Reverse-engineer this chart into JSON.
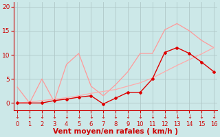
{
  "bg_color": "#cce8e8",
  "grid_color": "#b0c8c8",
  "xlabel": "Vent moyen/en rafales ( km/h )",
  "ylabel_ticks": [
    0,
    5,
    10,
    15,
    20
  ],
  "xlim": [
    -0.3,
    16.3
  ],
  "ylim": [
    -1.5,
    21
  ],
  "xticks": [
    0,
    1,
    2,
    3,
    4,
    5,
    6,
    7,
    8,
    9,
    10,
    11,
    12,
    13,
    14,
    15,
    16
  ],
  "series": [
    {
      "label": "s1_lightpink_spiky",
      "x": [
        0,
        1,
        2,
        3,
        4,
        5,
        6,
        7,
        8,
        9,
        10,
        11,
        12,
        13,
        14,
        15,
        16
      ],
      "y": [
        3.3,
        0.0,
        5.0,
        0.3,
        8.0,
        10.3,
        3.5,
        1.5,
        3.8,
        6.5,
        10.3,
        10.3,
        15.2,
        16.5,
        15.0,
        13.0,
        11.5
      ],
      "color": "#ff9999",
      "linewidth": 0.9,
      "marker": null,
      "zorder": 2
    },
    {
      "label": "s2_linear",
      "x": [
        0,
        1,
        2,
        3,
        4,
        5,
        6,
        7,
        8,
        9,
        10,
        11,
        12,
        13,
        14,
        15,
        16
      ],
      "y": [
        0.0,
        0.2,
        0.5,
        0.8,
        1.1,
        1.5,
        2.0,
        2.4,
        2.8,
        3.5,
        4.2,
        5.2,
        6.5,
        7.8,
        9.0,
        10.2,
        11.5
      ],
      "color": "#ffaaaa",
      "linewidth": 0.9,
      "marker": null,
      "zorder": 2
    },
    {
      "label": "s3_dark_diamonds",
      "x": [
        0,
        1,
        2,
        3,
        4,
        5,
        6,
        7,
        8,
        9,
        10,
        11,
        12,
        13,
        14,
        15,
        16
      ],
      "y": [
        0.0,
        0.0,
        0.0,
        0.5,
        0.8,
        1.2,
        1.5,
        -0.2,
        1.0,
        2.2,
        2.2,
        5.0,
        10.5,
        11.5,
        10.3,
        8.5,
        6.5
      ],
      "color": "#dd0000",
      "linewidth": 1.0,
      "marker": "D",
      "markersize": 2.0,
      "zorder": 3
    }
  ],
  "tick_color": "#cc0000",
  "label_color": "#cc0000",
  "axis_color": "#cc0000",
  "xlabel_fontsize": 7.5,
  "tick_fontsize": 6.5
}
